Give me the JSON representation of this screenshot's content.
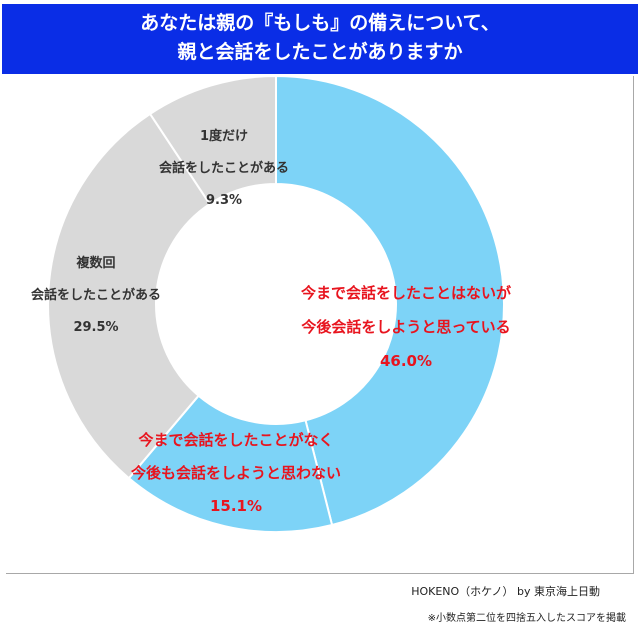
{
  "title": {
    "line1": "あなたは親の『もしも』の備えについて、",
    "line2": "親と会話をしたことがありますか"
  },
  "colors": {
    "title_bg": "#0a2de6",
    "title_text": "#ffffff",
    "highlight_label": "#e8141e",
    "normal_label": "#333333"
  },
  "chart_data": {
    "type": "pie",
    "donut": true,
    "legend": "none",
    "slices": [
      {
        "label_lines": [
          "今まで会話をしたことはないが",
          "今後会話をしようと思っている"
        ],
        "value": 46.0,
        "value_label": "46.0%",
        "color": "#7dd3f7",
        "highlight": true
      },
      {
        "label_lines": [
          "今まで会話をしたことがなく",
          "今後も会話をしようと思わない"
        ],
        "value": 15.1,
        "value_label": "15.1%",
        "color": "#7dd3f7",
        "highlight": true
      },
      {
        "label_lines": [
          "複数回",
          "会話をしたことがある"
        ],
        "value": 29.5,
        "value_label": "29.5%",
        "color": "#d9d9d9",
        "highlight": false
      },
      {
        "label_lines": [
          "1度だけ",
          "会話をしたことがある"
        ],
        "value": 9.3,
        "value_label": "9.3%",
        "color": "#d9d9d9",
        "highlight": false
      }
    ]
  },
  "footer": {
    "credit": "HOKENO（ホケノ） by 東京海上日動",
    "note": "※小数点第二位を四捨五入したスコアを掲載"
  }
}
